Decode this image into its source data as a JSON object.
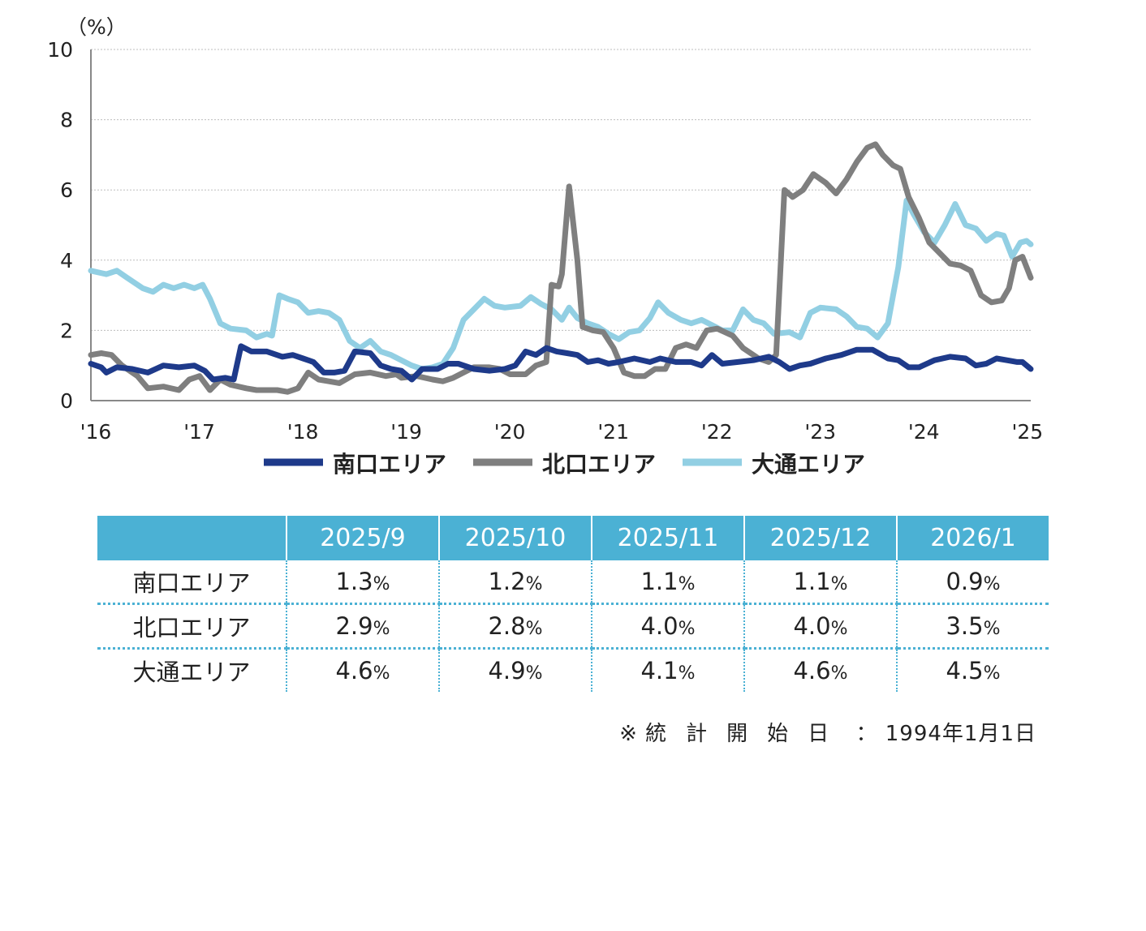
{
  "chart_data": {
    "type": "line",
    "ylabel": "（%）",
    "ylim": [
      0,
      10
    ],
    "yticks": [
      "0",
      "2",
      "4",
      "6",
      "8",
      "10"
    ],
    "xlim": [
      2016.0,
      2025.08
    ],
    "x_tick_labels": [
      "'16",
      "'17",
      "'18",
      "'19",
      "'20",
      "'21",
      "'22",
      "'23",
      "'24",
      "'25"
    ],
    "x_tick_values": [
      2016,
      2017,
      2018,
      2019,
      2020,
      2021,
      2022,
      2023,
      2024,
      2025
    ],
    "grid": true,
    "series": [
      {
        "name": "南口エリア",
        "color": "#1e3a8a",
        "points": [
          [
            2016.0,
            1.05
          ],
          [
            2016.1,
            0.95
          ],
          [
            2016.15,
            0.8
          ],
          [
            2016.25,
            0.95
          ],
          [
            2016.4,
            0.9
          ],
          [
            2016.55,
            0.8
          ],
          [
            2016.7,
            1.0
          ],
          [
            2016.85,
            0.95
          ],
          [
            2017.0,
            1.0
          ],
          [
            2017.1,
            0.85
          ],
          [
            2017.18,
            0.6
          ],
          [
            2017.3,
            0.65
          ],
          [
            2017.38,
            0.6
          ],
          [
            2017.45,
            1.55
          ],
          [
            2017.55,
            1.4
          ],
          [
            2017.7,
            1.4
          ],
          [
            2017.85,
            1.25
          ],
          [
            2017.95,
            1.3
          ],
          [
            2018.05,
            1.2
          ],
          [
            2018.15,
            1.1
          ],
          [
            2018.25,
            0.8
          ],
          [
            2018.35,
            0.8
          ],
          [
            2018.45,
            0.85
          ],
          [
            2018.55,
            1.4
          ],
          [
            2018.7,
            1.35
          ],
          [
            2018.8,
            1.0
          ],
          [
            2018.9,
            0.9
          ],
          [
            2019.0,
            0.85
          ],
          [
            2019.1,
            0.6
          ],
          [
            2019.2,
            0.9
          ],
          [
            2019.35,
            0.9
          ],
          [
            2019.45,
            1.05
          ],
          [
            2019.55,
            1.05
          ],
          [
            2019.7,
            0.9
          ],
          [
            2019.85,
            0.85
          ],
          [
            2020.0,
            0.9
          ],
          [
            2020.1,
            1.0
          ],
          [
            2020.2,
            1.4
          ],
          [
            2020.3,
            1.3
          ],
          [
            2020.35,
            1.4
          ],
          [
            2020.4,
            1.5
          ],
          [
            2020.5,
            1.4
          ],
          [
            2020.6,
            1.35
          ],
          [
            2020.7,
            1.3
          ],
          [
            2020.8,
            1.1
          ],
          [
            2020.9,
            1.15
          ],
          [
            2021.0,
            1.05
          ],
          [
            2021.1,
            1.1
          ],
          [
            2021.25,
            1.2
          ],
          [
            2021.4,
            1.1
          ],
          [
            2021.5,
            1.2
          ],
          [
            2021.65,
            1.1
          ],
          [
            2021.8,
            1.1
          ],
          [
            2021.9,
            1.0
          ],
          [
            2022.0,
            1.3
          ],
          [
            2022.1,
            1.05
          ],
          [
            2022.25,
            1.1
          ],
          [
            2022.4,
            1.15
          ],
          [
            2022.55,
            1.25
          ],
          [
            2022.65,
            1.1
          ],
          [
            2022.75,
            0.9
          ],
          [
            2022.85,
            1.0
          ],
          [
            2022.95,
            1.05
          ],
          [
            2023.1,
            1.2
          ],
          [
            2023.25,
            1.3
          ],
          [
            2023.4,
            1.45
          ],
          [
            2023.55,
            1.45
          ],
          [
            2023.7,
            1.2
          ],
          [
            2023.8,
            1.15
          ],
          [
            2023.9,
            0.95
          ],
          [
            2024.0,
            0.95
          ],
          [
            2024.15,
            1.15
          ],
          [
            2024.3,
            1.25
          ],
          [
            2024.45,
            1.2
          ],
          [
            2024.55,
            1.0
          ],
          [
            2024.65,
            1.05
          ],
          [
            2024.75,
            1.2
          ],
          [
            2024.85,
            1.15
          ],
          [
            2024.95,
            1.1
          ],
          [
            2025.0,
            1.1
          ],
          [
            2025.08,
            0.9
          ]
        ]
      },
      {
        "name": "北口エリア",
        "color": "#7f7f7f",
        "points": [
          [
            2016.0,
            1.3
          ],
          [
            2016.1,
            1.35
          ],
          [
            2016.2,
            1.3
          ],
          [
            2016.3,
            1.0
          ],
          [
            2016.45,
            0.7
          ],
          [
            2016.55,
            0.35
          ],
          [
            2016.7,
            0.4
          ],
          [
            2016.85,
            0.3
          ],
          [
            2016.95,
            0.6
          ],
          [
            2017.05,
            0.7
          ],
          [
            2017.15,
            0.3
          ],
          [
            2017.25,
            0.6
          ],
          [
            2017.35,
            0.45
          ],
          [
            2017.5,
            0.35
          ],
          [
            2017.6,
            0.3
          ],
          [
            2017.7,
            0.3
          ],
          [
            2017.8,
            0.3
          ],
          [
            2017.9,
            0.25
          ],
          [
            2018.0,
            0.35
          ],
          [
            2018.1,
            0.8
          ],
          [
            2018.2,
            0.6
          ],
          [
            2018.3,
            0.55
          ],
          [
            2018.4,
            0.5
          ],
          [
            2018.55,
            0.75
          ],
          [
            2018.7,
            0.8
          ],
          [
            2018.85,
            0.7
          ],
          [
            2018.95,
            0.75
          ],
          [
            2019.0,
            0.65
          ],
          [
            2019.15,
            0.7
          ],
          [
            2019.3,
            0.6
          ],
          [
            2019.4,
            0.55
          ],
          [
            2019.5,
            0.65
          ],
          [
            2019.6,
            0.8
          ],
          [
            2019.7,
            0.95
          ],
          [
            2019.85,
            0.95
          ],
          [
            2019.95,
            0.9
          ],
          [
            2020.05,
            0.75
          ],
          [
            2020.2,
            0.75
          ],
          [
            2020.3,
            1.0
          ],
          [
            2020.4,
            1.1
          ],
          [
            2020.45,
            3.3
          ],
          [
            2020.52,
            3.25
          ],
          [
            2020.55,
            3.6
          ],
          [
            2020.62,
            6.1
          ],
          [
            2020.7,
            4.0
          ],
          [
            2020.75,
            2.1
          ],
          [
            2020.85,
            2.0
          ],
          [
            2020.95,
            1.95
          ],
          [
            2021.05,
            1.5
          ],
          [
            2021.15,
            0.8
          ],
          [
            2021.25,
            0.7
          ],
          [
            2021.35,
            0.7
          ],
          [
            2021.45,
            0.9
          ],
          [
            2021.55,
            0.9
          ],
          [
            2021.65,
            1.5
          ],
          [
            2021.75,
            1.6
          ],
          [
            2021.85,
            1.5
          ],
          [
            2021.95,
            2.0
          ],
          [
            2022.05,
            2.05
          ],
          [
            2022.2,
            1.85
          ],
          [
            2022.3,
            1.5
          ],
          [
            2022.45,
            1.2
          ],
          [
            2022.55,
            1.1
          ],
          [
            2022.62,
            1.3
          ],
          [
            2022.7,
            6.0
          ],
          [
            2022.78,
            5.8
          ],
          [
            2022.88,
            6.0
          ],
          [
            2022.98,
            6.45
          ],
          [
            2023.1,
            6.2
          ],
          [
            2023.2,
            5.9
          ],
          [
            2023.3,
            6.3
          ],
          [
            2023.4,
            6.8
          ],
          [
            2023.5,
            7.2
          ],
          [
            2023.58,
            7.3
          ],
          [
            2023.65,
            7.0
          ],
          [
            2023.75,
            6.7
          ],
          [
            2023.82,
            6.6
          ],
          [
            2023.9,
            5.8
          ],
          [
            2024.0,
            5.2
          ],
          [
            2024.1,
            4.5
          ],
          [
            2024.2,
            4.2
          ],
          [
            2024.3,
            3.9
          ],
          [
            2024.4,
            3.85
          ],
          [
            2024.5,
            3.7
          ],
          [
            2024.6,
            3.0
          ],
          [
            2024.7,
            2.8
          ],
          [
            2024.8,
            2.85
          ],
          [
            2024.87,
            3.2
          ],
          [
            2024.93,
            4.0
          ],
          [
            2025.0,
            4.1
          ],
          [
            2025.08,
            3.5
          ]
        ]
      },
      {
        "name": "大通エリア",
        "color": "#92cfe3",
        "points": [
          [
            2016.0,
            3.7
          ],
          [
            2016.15,
            3.6
          ],
          [
            2016.25,
            3.7
          ],
          [
            2016.35,
            3.5
          ],
          [
            2016.5,
            3.2
          ],
          [
            2016.6,
            3.1
          ],
          [
            2016.7,
            3.3
          ],
          [
            2016.8,
            3.2
          ],
          [
            2016.9,
            3.3
          ],
          [
            2017.0,
            3.2
          ],
          [
            2017.08,
            3.3
          ],
          [
            2017.15,
            2.9
          ],
          [
            2017.25,
            2.2
          ],
          [
            2017.35,
            2.05
          ],
          [
            2017.5,
            2.0
          ],
          [
            2017.6,
            1.8
          ],
          [
            2017.7,
            1.9
          ],
          [
            2017.75,
            1.85
          ],
          [
            2017.82,
            3.0
          ],
          [
            2017.9,
            2.9
          ],
          [
            2018.0,
            2.8
          ],
          [
            2018.1,
            2.5
          ],
          [
            2018.2,
            2.55
          ],
          [
            2018.3,
            2.5
          ],
          [
            2018.4,
            2.3
          ],
          [
            2018.5,
            1.7
          ],
          [
            2018.6,
            1.5
          ],
          [
            2018.7,
            1.7
          ],
          [
            2018.8,
            1.4
          ],
          [
            2018.9,
            1.3
          ],
          [
            2019.0,
            1.15
          ],
          [
            2019.1,
            1.0
          ],
          [
            2019.2,
            0.9
          ],
          [
            2019.3,
            0.95
          ],
          [
            2019.4,
            1.05
          ],
          [
            2019.5,
            1.5
          ],
          [
            2019.6,
            2.3
          ],
          [
            2019.7,
            2.6
          ],
          [
            2019.8,
            2.9
          ],
          [
            2019.9,
            2.7
          ],
          [
            2020.0,
            2.65
          ],
          [
            2020.15,
            2.7
          ],
          [
            2020.25,
            2.95
          ],
          [
            2020.35,
            2.75
          ],
          [
            2020.45,
            2.6
          ],
          [
            2020.55,
            2.3
          ],
          [
            2020.62,
            2.65
          ],
          [
            2020.7,
            2.35
          ],
          [
            2020.8,
            2.2
          ],
          [
            2020.9,
            2.1
          ],
          [
            2021.0,
            1.9
          ],
          [
            2021.1,
            1.75
          ],
          [
            2021.2,
            1.95
          ],
          [
            2021.3,
            2.0
          ],
          [
            2021.4,
            2.35
          ],
          [
            2021.48,
            2.8
          ],
          [
            2021.58,
            2.5
          ],
          [
            2021.7,
            2.3
          ],
          [
            2021.8,
            2.2
          ],
          [
            2021.9,
            2.3
          ],
          [
            2022.0,
            2.15
          ],
          [
            2022.1,
            2.0
          ],
          [
            2022.2,
            2.0
          ],
          [
            2022.3,
            2.6
          ],
          [
            2022.4,
            2.3
          ],
          [
            2022.5,
            2.2
          ],
          [
            2022.6,
            1.9
          ],
          [
            2022.75,
            1.95
          ],
          [
            2022.85,
            1.8
          ],
          [
            2022.95,
            2.5
          ],
          [
            2023.05,
            2.65
          ],
          [
            2023.2,
            2.6
          ],
          [
            2023.3,
            2.4
          ],
          [
            2023.4,
            2.1
          ],
          [
            2023.5,
            2.05
          ],
          [
            2023.6,
            1.8
          ],
          [
            2023.7,
            2.2
          ],
          [
            2023.8,
            3.8
          ],
          [
            2023.88,
            5.7
          ],
          [
            2023.95,
            5.3
          ],
          [
            2024.05,
            4.8
          ],
          [
            2024.15,
            4.5
          ],
          [
            2024.25,
            5.0
          ],
          [
            2024.35,
            5.6
          ],
          [
            2024.45,
            5.0
          ],
          [
            2024.55,
            4.9
          ],
          [
            2024.65,
            4.55
          ],
          [
            2024.75,
            4.75
          ],
          [
            2024.82,
            4.7
          ],
          [
            2024.9,
            4.1
          ],
          [
            2024.98,
            4.5
          ],
          [
            2025.04,
            4.55
          ],
          [
            2025.08,
            4.45
          ]
        ]
      }
    ]
  },
  "table": {
    "headers": [
      "2025/9",
      "2025/10",
      "2025/11",
      "2025/12",
      "2026/1"
    ],
    "rows": [
      {
        "label": "南口エリア",
        "values": [
          "1.3",
          "1.2",
          "1.1",
          "1.1",
          "0.9"
        ]
      },
      {
        "label": "北口エリア",
        "values": [
          "2.9",
          "2.8",
          "4.0",
          "4.0",
          "3.5"
        ]
      },
      {
        "label": "大通エリア",
        "values": [
          "4.6",
          "4.9",
          "4.1",
          "4.6",
          "4.5"
        ]
      }
    ],
    "unit": "%"
  },
  "footnote": {
    "mark": "※",
    "label": "統計開始日",
    "separator": "：",
    "value": "1994年1月1日"
  }
}
